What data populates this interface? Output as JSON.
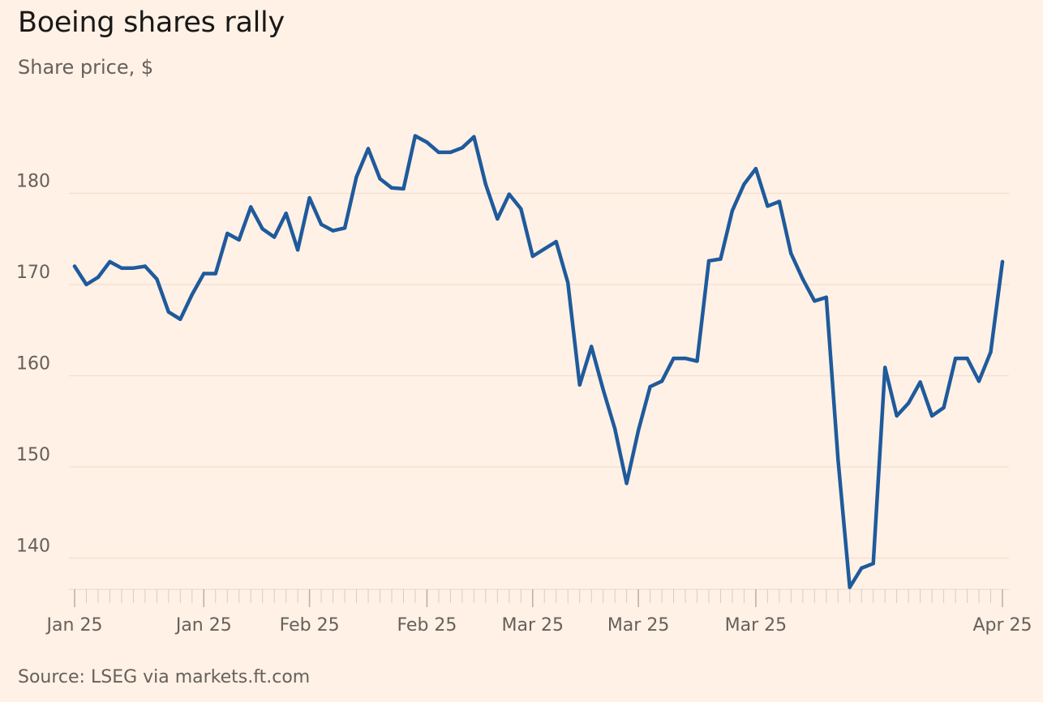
{
  "header": {
    "title": "Boeing shares rally",
    "subtitle": "Share price, $"
  },
  "footer": {
    "source": "Source: LSEG via markets.ft.com"
  },
  "colors": {
    "background": "#fff1e5",
    "line": "#1f5a9c",
    "grid": "#f2dfce",
    "text": "#66605c"
  },
  "chart_data": {
    "type": "line",
    "ylim": [
      135,
      190
    ],
    "yticks": [
      140,
      150,
      160,
      170,
      180
    ],
    "grid": true,
    "xtick_labels": [
      "Jan 25",
      "Jan 25",
      "Feb 25",
      "Feb 25",
      "Mar 25",
      "Mar 25",
      "Mar 25",
      "Apr 25"
    ],
    "series": [
      {
        "values": [
          172.0,
          170.0,
          170.8,
          172.5,
          171.8,
          171.8,
          172.0,
          170.6,
          167.0,
          166.2,
          168.9,
          171.2,
          171.2,
          175.6,
          174.9,
          178.5,
          176.1,
          175.2,
          177.8,
          173.8,
          179.5,
          176.6,
          175.9,
          176.2,
          181.8,
          184.9,
          181.6,
          180.6,
          180.5,
          186.3,
          185.6,
          184.5,
          184.5,
          185.0,
          186.2,
          181.0,
          177.2,
          179.9,
          178.3,
          173.1,
          173.9,
          174.7,
          170.2,
          159.0,
          163.2,
          158.5,
          154.2,
          148.2,
          154.0,
          158.8,
          159.4,
          161.9,
          161.9,
          161.6,
          172.6,
          172.8,
          178.1,
          181.0,
          182.7,
          178.6,
          179.1,
          173.4,
          170.6,
          168.2,
          168.6,
          150.8,
          136.8,
          138.9,
          139.4,
          160.9,
          155.6,
          157.0,
          159.3,
          155.6,
          156.5,
          161.9,
          161.9,
          159.4,
          162.6,
          172.5
        ]
      }
    ]
  }
}
